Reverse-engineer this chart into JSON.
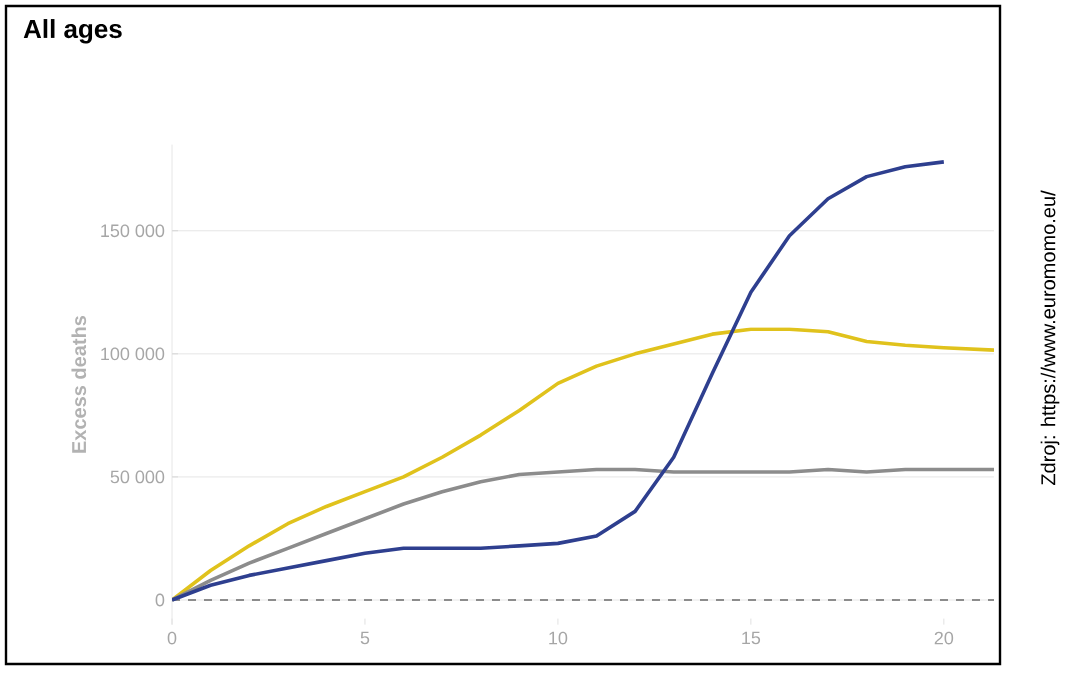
{
  "chart_data": {
    "type": "line",
    "title": "All ages",
    "ylabel": "Excess deaths",
    "xlim": [
      0,
      21.3
    ],
    "xticks": [
      0,
      5,
      10,
      15,
      20
    ],
    "ylim": [
      -10000,
      185000
    ],
    "yticks": [
      {
        "value": 0,
        "label": "0"
      },
      {
        "value": 50000,
        "label": "50 000"
      },
      {
        "value": 100000,
        "label": "100 000"
      },
      {
        "value": 150000,
        "label": "150 000"
      }
    ],
    "grid": "y",
    "line_style": "solid",
    "marker": "none",
    "ref_lines": [
      {
        "axis": "y",
        "value": 0,
        "color": "#8c8c8c",
        "line_style": "dashed"
      }
    ],
    "annotations": [
      "Zdroj: https://www.euromomo.eu/"
    ],
    "series": [
      {
        "color": "#e0c21c",
        "x": [
          0,
          1,
          2,
          3,
          4,
          5,
          6,
          7,
          8,
          9,
          10,
          11,
          12,
          13,
          14,
          15,
          16,
          17,
          18,
          19,
          20,
          21.3
        ],
        "values": [
          0,
          12000,
          22000,
          31000,
          38000,
          44000,
          50000,
          58000,
          67000,
          77000,
          88000,
          95000,
          100000,
          104000,
          108000,
          110000,
          110000,
          109000,
          105000,
          103500,
          102500,
          101500
        ]
      },
      {
        "color": "#8c8c8c",
        "x": [
          0,
          1,
          2,
          3,
          4,
          5,
          6,
          7,
          8,
          9,
          10,
          11,
          12,
          13,
          14,
          15,
          16,
          17,
          18,
          19,
          20,
          21.3
        ],
        "values": [
          0,
          8000,
          15000,
          21000,
          27000,
          33000,
          39000,
          44000,
          48000,
          51000,
          52000,
          53000,
          53000,
          52000,
          52000,
          52000,
          52000,
          53000,
          52000,
          53000,
          53000,
          53000
        ]
      },
      {
        "color": "#2e3f8f",
        "x": [
          0,
          1,
          2,
          3,
          4,
          5,
          6,
          7,
          8,
          9,
          10,
          11,
          12,
          13,
          14,
          15,
          16,
          17,
          18,
          19,
          20
        ],
        "values": [
          0,
          6000,
          10000,
          13000,
          16000,
          19000,
          21000,
          21000,
          21000,
          22000,
          23000,
          26000,
          36000,
          58000,
          92000,
          125000,
          148000,
          163000,
          172000,
          176000,
          178000
        ]
      }
    ]
  }
}
